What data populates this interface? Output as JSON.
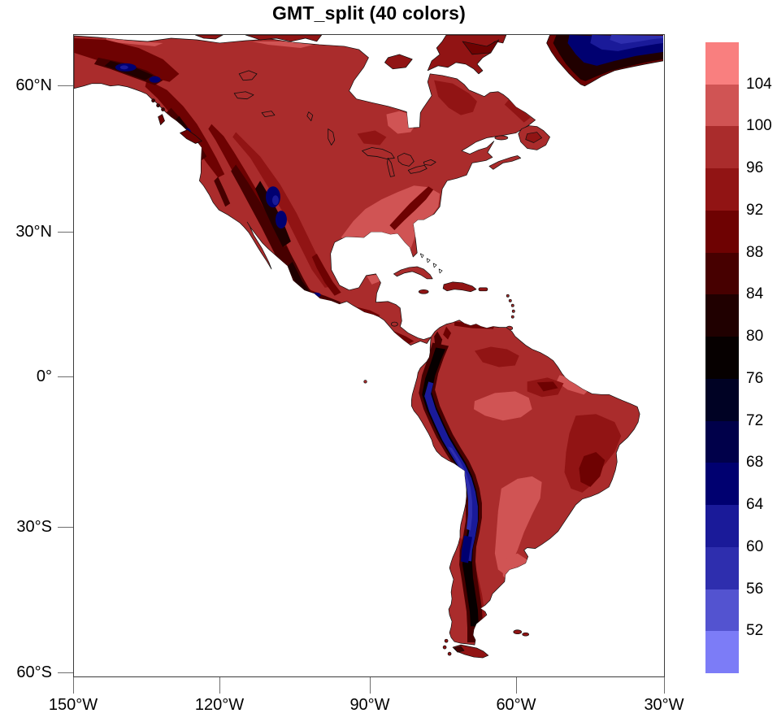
{
  "title": "GMT_split (40 colors)",
  "axes": {
    "y_tick_labels": [
      "60°N",
      "30°N",
      "0°",
      "30°S",
      "60°S"
    ],
    "x_tick_labels": [
      "150°W",
      "120°W",
      "90°W",
      "60°W",
      "30°W"
    ]
  },
  "colorbar": {
    "position": "right",
    "labels_top_to_bottom": [
      "104",
      "100",
      "96",
      "92",
      "88",
      "84",
      "80",
      "76",
      "72",
      "68",
      "64",
      "60",
      "56",
      "52"
    ],
    "colors_top_to_bottom": [
      "#f97f7f",
      "#d05454",
      "#aa2c2c",
      "#911414",
      "#6e0202",
      "#470000",
      "#200000",
      "#060000",
      "#000224",
      "#00004a",
      "#000070",
      "#1a1a99",
      "#2e2eae",
      "#5353d0",
      "#7c7cf7"
    ]
  },
  "map_colors": {
    "ocean": "#ffffff",
    "coastline": "#0d0d0d",
    "land_base": "#aa2c2c"
  },
  "chart_data": {
    "type": "heatmap",
    "subtype": "filled-contour-map",
    "title": "GMT_split (40 colors)",
    "colormap": "GMT_split",
    "region": "North and South America with Greenland",
    "lon_range_deg": [
      -150,
      -30
    ],
    "lat_range_deg": [
      -61.5,
      70.5
    ],
    "x_tick_labels": [
      "150°W",
      "120°W",
      "90°W",
      "60°W",
      "30°W"
    ],
    "y_tick_labels": [
      "60°N",
      "30°N",
      "0°",
      "30°S",
      "60°S"
    ],
    "contour_levels": [
      52,
      56,
      60,
      64,
      68,
      72,
      76,
      80,
      84,
      88,
      92,
      96,
      100,
      104
    ],
    "level_colors_low_to_high": [
      "#7c7cf7",
      "#5353d0",
      "#2e2eae",
      "#1a1a99",
      "#000070",
      "#00004a",
      "#000224",
      "#060000",
      "#200000",
      "#470000",
      "#6e0202",
      "#911414",
      "#aa2c2c",
      "#d05454",
      "#f97f7f"
    ],
    "legend_position": "right vertical labelbar",
    "ocean_masked_white": true,
    "pattern": "low values (blue/black) over high terrain: Rocky Mountains, Mexican sierras, Andes, Greenland interior; high values (red/salmon) over lowlands: SE United States, Amazon basin, Argentine pampas"
  }
}
